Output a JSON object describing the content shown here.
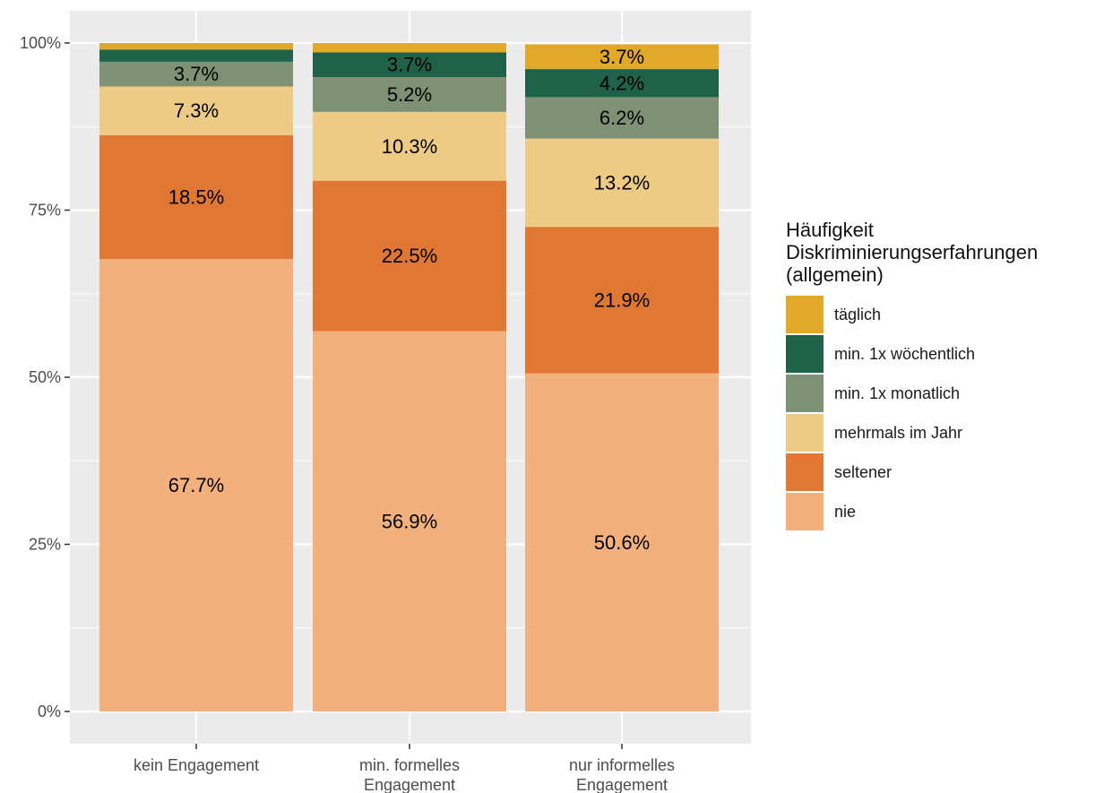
{
  "chart_data": {
    "type": "bar",
    "stacked": true,
    "orientation": "vertical",
    "categories": [
      [
        "kein Engagement"
      ],
      [
        "min. formelles",
        "Engagement"
      ],
      [
        "nur informelles",
        "Engagement"
      ]
    ],
    "ylim": [
      0,
      1
    ],
    "yticks": [
      {
        "value": 0,
        "label": "0%"
      },
      {
        "value": 0.25,
        "label": "25%"
      },
      {
        "value": 0.5,
        "label": "50%"
      },
      {
        "value": 0.75,
        "label": "75%"
      },
      {
        "value": 1,
        "label": "100%"
      }
    ],
    "series": [
      {
        "name": "nie",
        "color": "#F2B07C",
        "values": [
          0.677,
          0.569,
          0.506
        ],
        "labels": [
          "67.7%",
          "56.9%",
          "50.6%"
        ]
      },
      {
        "name": "seltener",
        "color": "#E07834",
        "values": [
          0.185,
          0.225,
          0.219
        ],
        "labels": [
          "18.5%",
          "22.5%",
          "21.9%"
        ]
      },
      {
        "name": "mehrmals im Jahr",
        "color": "#EECB84",
        "values": [
          0.073,
          0.103,
          0.132
        ],
        "labels": [
          "7.3%",
          "10.3%",
          "13.2%"
        ]
      },
      {
        "name": "min. 1x monatlich",
        "color": "#7F9174",
        "values": [
          0.037,
          0.052,
          0.062
        ],
        "labels": [
          "3.7%",
          "5.2%",
          "6.2%"
        ]
      },
      {
        "name": "min. 1x wöchentlich",
        "color": "#1F6149",
        "values": [
          0.018,
          0.037,
          0.042
        ],
        "labels": [
          "",
          "3.7%",
          "4.2%"
        ]
      },
      {
        "name": "täglich",
        "color": "#E2A82A",
        "values": [
          0.01,
          0.014,
          0.037
        ],
        "labels": [
          "",
          "",
          "3.7%"
        ]
      }
    ],
    "legend": {
      "title": [
        "Häufigkeit",
        "Diskriminierungserfahrungen",
        "(allgemein)"
      ],
      "placement": "right",
      "order": [
        "täglich",
        "min. 1x wöchentlich",
        "min. 1x monatlich",
        "mehrmals im Jahr",
        "seltener",
        "nie"
      ]
    },
    "grid": true,
    "panel_background": "#EBEBEB",
    "xlabel": "",
    "ylabel": ""
  }
}
